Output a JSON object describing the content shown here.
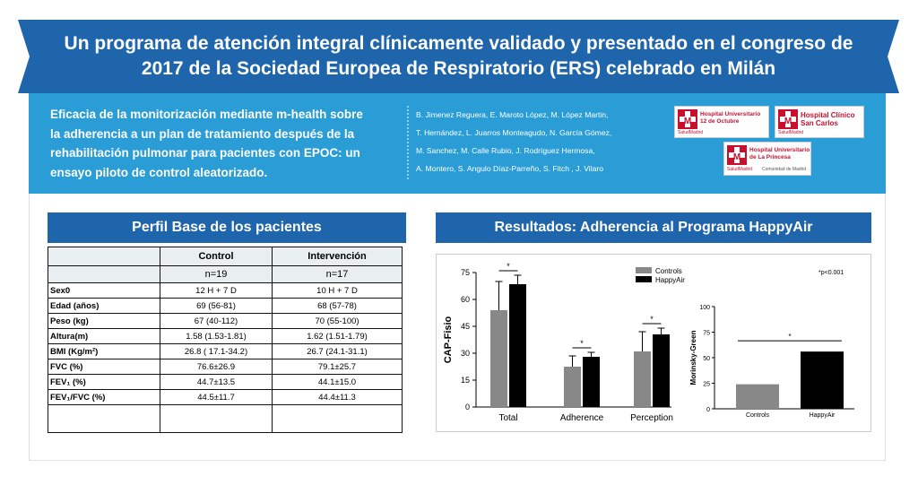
{
  "header": {
    "title": "Un programa de atención integral clínicamente validado y presentado en el congreso de 2017 de la Sociedad Europea de Respiratorio (ERS) celebrado en Milán"
  },
  "study": {
    "title": "Eficacia de la monitorización mediante m-health sobre la adherencia a un plan de tratamiento después de la rehabilitación pulmonar para pacientes con EPOC: un ensayo piloto de control aleatorizado.",
    "authors": [
      "B. Jimenez Reguera, E. Maroto López, M. López Martin,",
      "T. Hernández, L. Juarros Monteagudo, N. García Gómez,",
      "M. Sanchez,  M. Calle Rubio, J. Rodríguez Hermosa,",
      "A. Montero, S. Angulo Díaz-Parreño, S. Fitch , J. Vilaro"
    ]
  },
  "logos": {
    "octubre": {
      "name": "Hospital Universitario 12 de Octubre",
      "line1": "Hospital Universitario",
      "line2": "12 de Octubre",
      "sub": "SaludMadrid"
    },
    "clinico": {
      "name": "Hospital Clínico San Carlos",
      "line1": "Hospital Clínico",
      "line2": "San Carlos",
      "sub": "SaludMadrid"
    },
    "princesa": {
      "name": "Hospital Universitario de La Princesa",
      "line1": "Hospital Universitario",
      "line2": "de La Princesa",
      "sub": "SaludMadrid",
      "sub2": "Comunidad de Madrid"
    }
  },
  "baseline": {
    "title": "Perfil Base de los pacientes",
    "columns": [
      {
        "label": "Control",
        "n": "n=19"
      },
      {
        "label": "Intervención",
        "n": "n=17"
      }
    ],
    "rows": [
      {
        "label": "Sex0",
        "control": "12 H + 7 D",
        "intervention": "10 H + 7 D"
      },
      {
        "label": "Edad (años)",
        "control": "69  (56-81)",
        "intervention": "68  (57-78)"
      },
      {
        "label": "Peso (kg)",
        "control": "67  (40-112)",
        "intervention": "70  (55-100)"
      },
      {
        "label": "Altura(m)",
        "control": "1.58  (1.53-1.81)",
        "intervention": "1.62  (1.51-1.79)"
      },
      {
        "label": "BMI (Kg/m²)",
        "control": "26.8  ( 17.1-34.2)",
        "intervention": "26.7 (24.1-31.1)"
      },
      {
        "label": "FVC (%)",
        "control": "76.6±26.9",
        "intervention": "79.1±25.7"
      },
      {
        "label": "FEV₁ (%)",
        "control": "44.7±13.5",
        "intervention": "44.1±15.0"
      },
      {
        "label": "FEV₁/FVC (%)",
        "control": "44.5±11.7",
        "intervention": "44.4±11.3"
      },
      {
        "label": "",
        "control": "",
        "intervention": ""
      }
    ]
  },
  "results": {
    "title": "Resultados: Adherencia al Programa HappyAir",
    "note": "*p<0.001"
  },
  "chart_data": [
    {
      "type": "bar",
      "ylabel": "CAP-Fisio",
      "ylim": [
        0,
        75
      ],
      "yticks": [
        "0",
        "15",
        "30",
        "45",
        "60",
        "75"
      ],
      "categories": [
        "Total",
        "Adherence",
        "Perception"
      ],
      "series": [
        {
          "name": "Controls",
          "color": "#888888",
          "values": [
            54,
            22.5,
            31
          ],
          "errors": [
            16,
            6,
            11
          ]
        },
        {
          "name": "HappyAir",
          "color": "#000000",
          "values": [
            68.5,
            28,
            40.5
          ],
          "errors": [
            5,
            2.5,
            3.5
          ]
        }
      ],
      "significance": [
        "*",
        "*",
        "*"
      ],
      "legend_position": "top-right"
    },
    {
      "type": "bar",
      "ylabel": "Morinsky-Green",
      "ylim": [
        0,
        100
      ],
      "yticks": [
        "0",
        "25",
        "50",
        "75",
        "100"
      ],
      "categories": [
        "Controls",
        "HappyAir"
      ],
      "values": [
        24,
        56
      ],
      "colors": [
        "#888888",
        "#000000"
      ],
      "significance": "*"
    }
  ]
}
